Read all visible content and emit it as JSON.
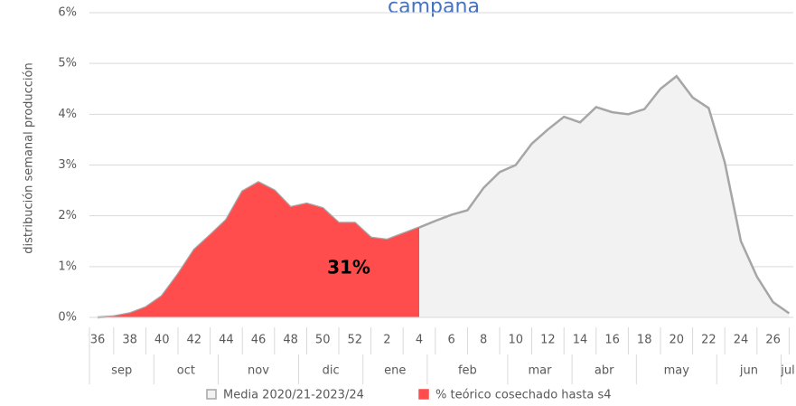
{
  "chart_data": {
    "type": "area",
    "title": "campaña",
    "y_axis_label": "distribución semanal producción",
    "annotation": "31%",
    "categories": [
      "36",
      null,
      "38",
      null,
      "40",
      null,
      "42",
      null,
      "44",
      null,
      "46",
      null,
      "48",
      null,
      "50",
      null,
      "52",
      null,
      "2",
      null,
      "4",
      null,
      "6",
      null,
      "8",
      null,
      "10",
      null,
      "12",
      null,
      "14",
      null,
      "16",
      null,
      "18",
      null,
      "20",
      null,
      "22",
      null,
      "24",
      null,
      "26",
      null
    ],
    "months": [
      "sep",
      "oct",
      "nov",
      "dic",
      "ene",
      "feb",
      "mar",
      "abr",
      "may",
      "jun",
      "jul"
    ],
    "series": [
      {
        "name": "Media 2020/21-2023/24",
        "color": "#a6a6a6",
        "fill": "#f2f2f2",
        "values": [
          0,
          0.02,
          0.08,
          0.2,
          0.42,
          0.85,
          1.33,
          1.62,
          1.92,
          2.48,
          2.66,
          2.5,
          2.17,
          2.24,
          2.15,
          1.86,
          1.86,
          1.57,
          1.53,
          1.65,
          1.77,
          1.9,
          2.02,
          2.11,
          2.55,
          2.86,
          3.0,
          3.42,
          3.7,
          3.95,
          3.84,
          4.14,
          4.04,
          4.0,
          4.1,
          4.5,
          4.75,
          4.33,
          4.12,
          3.05,
          1.5,
          0.8,
          0.3,
          0.08
        ]
      },
      {
        "name": "% teórico cosechado hasta s4",
        "color": "#ff4d4d",
        "fill": "#ff4d4d",
        "values": [
          0,
          0.02,
          0.08,
          0.2,
          0.42,
          0.85,
          1.33,
          1.62,
          1.92,
          2.48,
          2.66,
          2.5,
          2.17,
          2.24,
          2.15,
          1.86,
          1.86,
          1.57,
          1.53,
          1.65,
          1.77,
          null,
          null,
          null,
          null,
          null,
          null,
          null,
          null,
          null,
          null,
          null,
          null,
          null,
          null,
          null,
          null,
          null,
          null,
          null,
          null,
          null,
          null,
          null
        ]
      }
    ],
    "ylim": [
      0,
      6
    ],
    "yticks": [
      {
        "value": 0,
        "label": "0%"
      },
      {
        "value": 1,
        "label": "1%"
      },
      {
        "value": 2,
        "label": "2%"
      },
      {
        "value": 3,
        "label": "3%"
      },
      {
        "value": 4,
        "label": "4%"
      },
      {
        "value": 5,
        "label": "5%"
      },
      {
        "value": 6,
        "label": "6%"
      }
    ],
    "grid": true
  }
}
